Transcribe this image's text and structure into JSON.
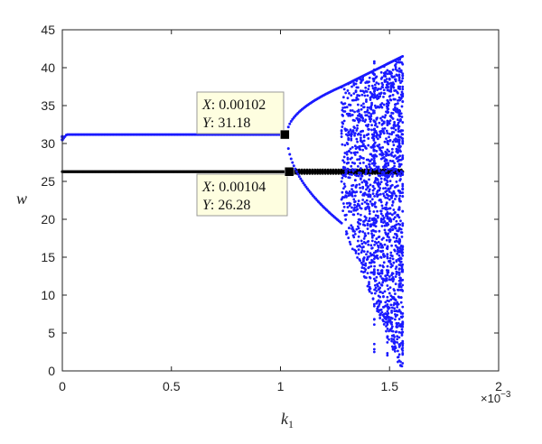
{
  "chart_data": {
    "type": "scatter",
    "title": "",
    "xlabel": "k",
    "xlabel_sub": "1",
    "ylabel": "w",
    "x_multiplier_label": "×10",
    "x_multiplier_exp": "−3",
    "xlim": [
      0,
      2
    ],
    "ylim": [
      0,
      45
    ],
    "xticks": [
      "0",
      "0.5",
      "1",
      "1.5",
      "2"
    ],
    "yticks": [
      "0",
      "5",
      "10",
      "15",
      "20",
      "25",
      "30",
      "35",
      "40",
      "45"
    ],
    "x_units": "×10⁻³",
    "grid": false,
    "series_colors": {
      "blue": "#1a1aff",
      "black": "#000000"
    },
    "series": [
      {
        "color": "blue",
        "description_points": "stable branch then period-doubling cascade",
        "stable": {
          "x_start": 0.0,
          "x_end": 1.02,
          "y": 31.18,
          "y_start": 30.5
        },
        "period2": {
          "x_start": 1.03,
          "x_end": 1.28,
          "y_upper_end": 37.5,
          "y_lower_end": 19.5
        },
        "chaos": {
          "x_start": 1.28,
          "x_end": 1.56,
          "y_min": 0.5,
          "y_max": 41.5
        }
      },
      {
        "color": "black",
        "description_points": "constant branch",
        "line": {
          "x_start": 0.0,
          "x_end": 1.56,
          "y": 26.28
        }
      }
    ],
    "datatips": [
      {
        "x_label": "X",
        "x_value": "0.00102",
        "y_label": "Y",
        "y_value": "31.18",
        "x": 1.02,
        "y": 31.18
      },
      {
        "x_label": "X",
        "x_value": "0.00104",
        "y_label": "Y",
        "y_value": "26.28",
        "x": 1.04,
        "y": 26.28
      }
    ]
  }
}
